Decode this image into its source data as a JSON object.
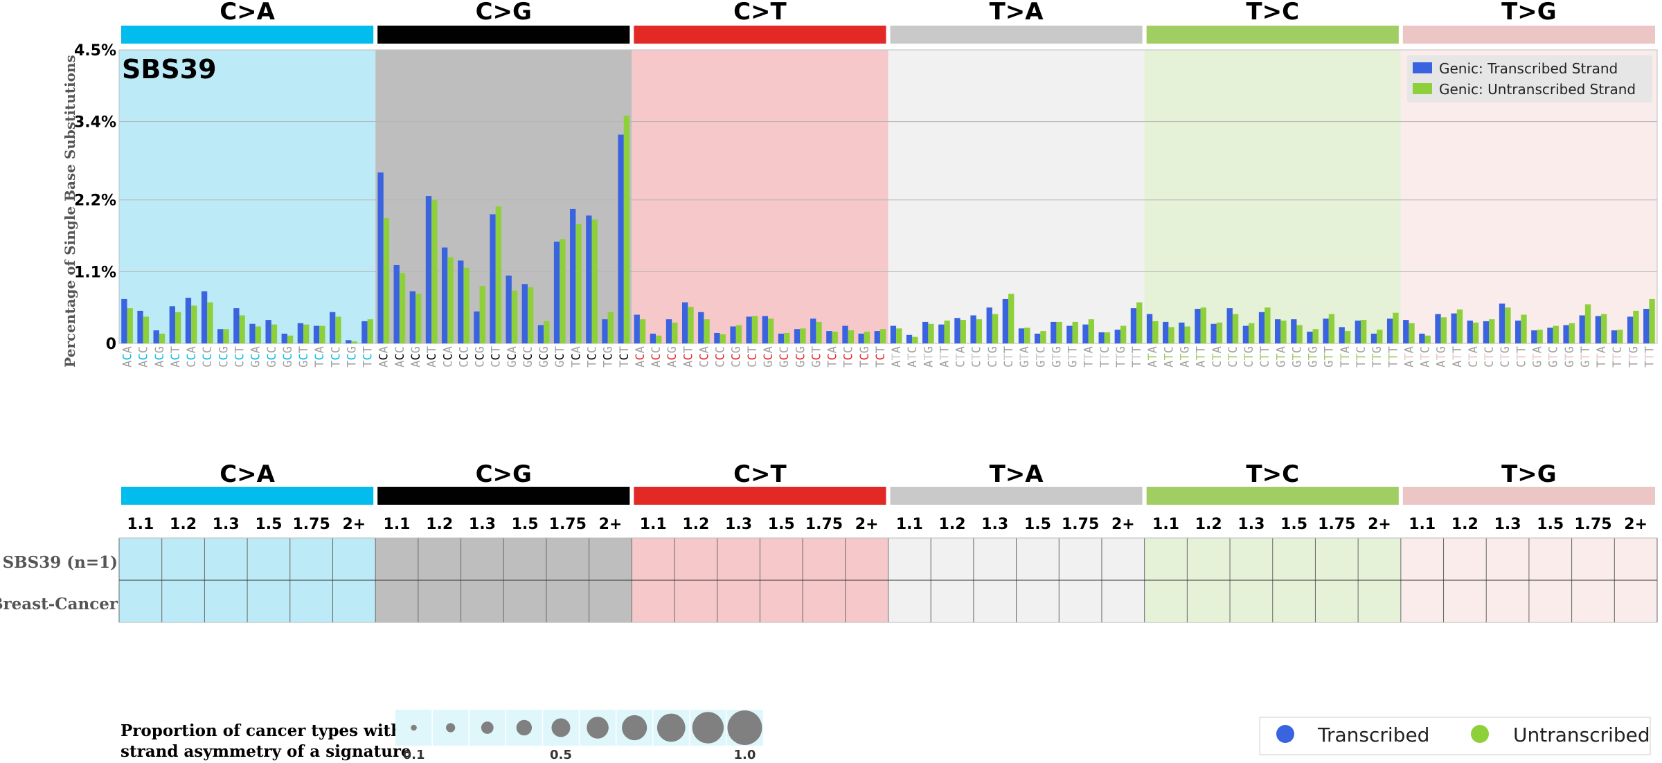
{
  "chart_data": [
    {
      "type": "bar",
      "title": "SBS39",
      "ylabel": "Percentage of Single Base Substitutions",
      "ylim": [
        0,
        4.5
      ],
      "yticks": [
        0,
        1.1,
        2.2,
        3.4,
        4.5
      ],
      "ytick_labels": [
        "0",
        "1.1%",
        "2.2%",
        "3.4%",
        "4.5%"
      ],
      "grid": true,
      "legend_position": "top-right",
      "legend": [
        "Genic: Transcribed Strand",
        "Genic: Untranscribed Strand"
      ],
      "mutation_types": [
        "C>A",
        "C>G",
        "C>T",
        "T>A",
        "T>C",
        "T>G"
      ],
      "contexts": [
        "ACA",
        "ACC",
        "ACG",
        "ACT",
        "CCA",
        "CCC",
        "CCG",
        "CCT",
        "GCA",
        "GCC",
        "GCG",
        "GCT",
        "TCA",
        "TCC",
        "TCG",
        "TCT",
        "ACA",
        "ACC",
        "ACG",
        "ACT",
        "CCA",
        "CCC",
        "CCG",
        "CCT",
        "GCA",
        "GCC",
        "GCG",
        "GCT",
        "TCA",
        "TCC",
        "TCG",
        "TCT",
        "ACA",
        "ACC",
        "ACG",
        "ACT",
        "CCA",
        "CCC",
        "CCG",
        "CCT",
        "GCA",
        "GCC",
        "GCG",
        "GCT",
        "TCA",
        "TCC",
        "TCG",
        "TCT",
        "ATA",
        "ATC",
        "ATG",
        "ATT",
        "CTA",
        "CTC",
        "CTG",
        "CTT",
        "GTA",
        "GTC",
        "GTG",
        "GTT",
        "TTA",
        "TTC",
        "TTG",
        "TTT",
        "ATA",
        "ATC",
        "ATG",
        "ATT",
        "CTA",
        "CTC",
        "CTG",
        "CTT",
        "GTA",
        "GTC",
        "GTG",
        "GTT",
        "TTA",
        "TTC",
        "TTG",
        "TTT",
        "ATA",
        "ATC",
        "ATG",
        "ATT",
        "CTA",
        "CTC",
        "CTG",
        "CTT",
        "GTA",
        "GTC",
        "GTG",
        "GTT",
        "TTA",
        "TTC",
        "TTG",
        "TTT"
      ],
      "series": [
        {
          "name": "Genic: Transcribed Strand",
          "values": [
            0.68,
            0.5,
            0.2,
            0.57,
            0.7,
            0.8,
            0.22,
            0.54,
            0.3,
            0.36,
            0.15,
            0.31,
            0.27,
            0.48,
            0.05,
            0.34,
            2.62,
            1.2,
            0.8,
            2.26,
            1.47,
            1.27,
            0.49,
            1.98,
            1.04,
            0.91,
            0.28,
            1.56,
            2.06,
            1.96,
            0.37,
            3.2,
            0.44,
            0.15,
            0.37,
            0.63,
            0.48,
            0.16,
            0.26,
            0.41,
            0.42,
            0.15,
            0.22,
            0.38,
            0.19,
            0.27,
            0.15,
            0.19,
            0.27,
            0.13,
            0.33,
            0.29,
            0.39,
            0.43,
            0.55,
            0.68,
            0.23,
            0.15,
            0.33,
            0.27,
            0.29,
            0.17,
            0.21,
            0.54,
            0.45,
            0.33,
            0.32,
            0.53,
            0.3,
            0.54,
            0.27,
            0.48,
            0.37,
            0.37,
            0.18,
            0.38,
            0.25,
            0.35,
            0.15,
            0.38,
            0.36,
            0.15,
            0.45,
            0.46,
            0.35,
            0.34,
            0.61,
            0.35,
            0.2,
            0.24,
            0.28,
            0.43,
            0.42,
            0.2,
            0.41,
            0.53
          ]
        },
        {
          "name": "Genic: Untranscribed Strand",
          "values": [
            0.54,
            0.41,
            0.15,
            0.48,
            0.58,
            0.63,
            0.22,
            0.43,
            0.26,
            0.29,
            0.12,
            0.29,
            0.27,
            0.41,
            0.03,
            0.37,
            1.92,
            1.08,
            0.76,
            2.2,
            1.32,
            1.16,
            0.88,
            2.1,
            0.81,
            0.86,
            0.34,
            1.6,
            1.83,
            1.9,
            0.48,
            3.49,
            0.37,
            0.12,
            0.32,
            0.56,
            0.37,
            0.14,
            0.28,
            0.42,
            0.38,
            0.16,
            0.23,
            0.33,
            0.18,
            0.2,
            0.18,
            0.22,
            0.23,
            0.1,
            0.3,
            0.35,
            0.36,
            0.37,
            0.45,
            0.76,
            0.24,
            0.19,
            0.33,
            0.33,
            0.37,
            0.17,
            0.27,
            0.63,
            0.34,
            0.25,
            0.26,
            0.55,
            0.32,
            0.45,
            0.31,
            0.55,
            0.35,
            0.28,
            0.22,
            0.45,
            0.19,
            0.36,
            0.21,
            0.47,
            0.31,
            0.12,
            0.4,
            0.52,
            0.32,
            0.37,
            0.55,
            0.44,
            0.21,
            0.27,
            0.31,
            0.6,
            0.45,
            0.21,
            0.5,
            0.68
          ]
        }
      ]
    },
    {
      "type": "heatmap",
      "mutation_types": [
        "C>A",
        "C>G",
        "C>T",
        "T>A",
        "T>C",
        "T>G"
      ],
      "columns": [
        "1.1",
        "1.2",
        "1.3",
        "1.5",
        "1.75",
        "2+"
      ],
      "rows": [
        "SBS39 (n=1)",
        "Breast-Cancer"
      ],
      "values": "empty"
    }
  ],
  "size_legend": {
    "label_line1": "Proportion of cancer types with",
    "label_line2": "strand asymmetry of a signature",
    "tick_labels": [
      "0.1",
      "0.5",
      "1.0"
    ],
    "values": [
      0.1,
      0.2,
      0.3,
      0.4,
      0.5,
      0.6,
      0.7,
      0.8,
      0.9,
      1.0
    ]
  },
  "strand_legend": [
    "Transcribed",
    "Untranscribed"
  ],
  "colors": {
    "C>A": "#03bcee",
    "C>G": "#010101",
    "C>T": "#e32926",
    "T>A": "#cac9c9",
    "T>C": "#a1ce63",
    "T>G": "#ebc6c4",
    "C>A_bg": "#bdeaf7",
    "C>G_bg": "#bebebe",
    "C>T_bg": "#f6c8ca",
    "T>A_bg": "#f1f1f1",
    "T>C_bg": "#e5f2d7",
    "T>G_bg": "#f9eceb",
    "transcribed": "#3a63e0",
    "untranscribed": "#8dd03a",
    "bubble": "#808080",
    "bubble_bg": "#dff7fa"
  }
}
